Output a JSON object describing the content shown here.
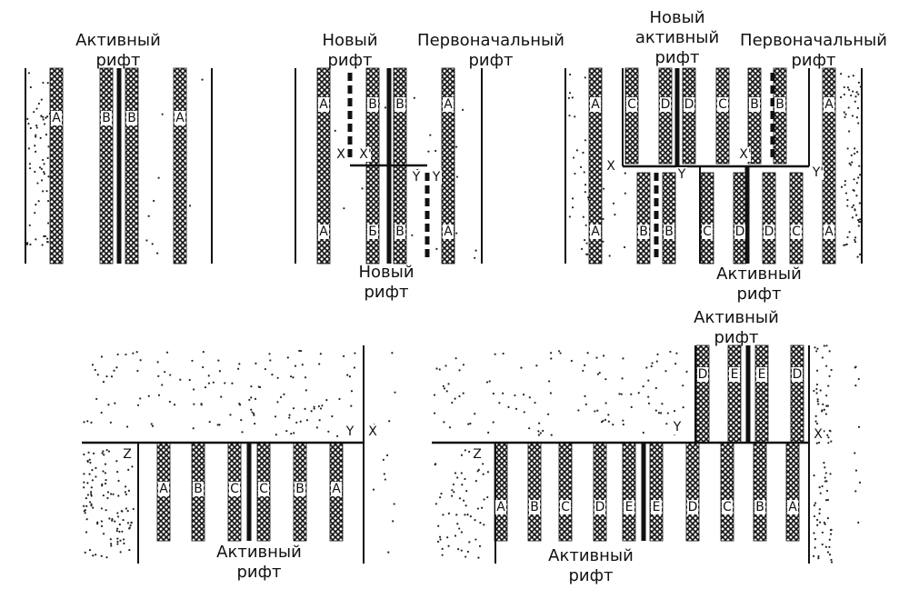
{
  "panels": [
    {
      "captions": [
        [
          "Активный",
          "рифт"
        ]
      ],
      "labels": [
        "A",
        "B",
        "B",
        "A"
      ]
    },
    {
      "captions": [
        [
          "Новый",
          "рифт"
        ],
        [
          "Первоначальный",
          "рифт"
        ],
        [
          "Новый",
          "рифт"
        ]
      ],
      "labels": [
        "A",
        "B",
        "B",
        "A",
        "X",
        "X'",
        "Y",
        "Y",
        "A",
        "Б",
        "B",
        "A"
      ]
    },
    {
      "captions": [
        [
          "Новый",
          "активный",
          "рифт"
        ],
        [
          "Первоначальный",
          "рифт"
        ],
        [
          "Активный",
          "рифт"
        ]
      ],
      "labels": [
        "A",
        "C",
        "D",
        "D",
        "C",
        "B",
        "B",
        "A",
        "X",
        "X'",
        "Y",
        "Y'",
        "A",
        "B",
        "B",
        "C",
        "D",
        "D",
        "C",
        "A"
      ]
    },
    {
      "captions": [
        [
          "Активный",
          "рифт"
        ]
      ],
      "labels": [
        "Y",
        "X",
        "Z",
        "A",
        "B",
        "C",
        "C",
        "B",
        "A"
      ]
    },
    {
      "captions": [
        [
          "Активный",
          "рифт"
        ],
        [
          "Активный",
          "рифт"
        ]
      ],
      "labels": [
        "D",
        "E",
        "E",
        "D",
        "Y",
        "X",
        "Z",
        "A",
        "B",
        "C",
        "D",
        "E",
        "E",
        "D",
        "C",
        "B",
        "A"
      ]
    }
  ]
}
